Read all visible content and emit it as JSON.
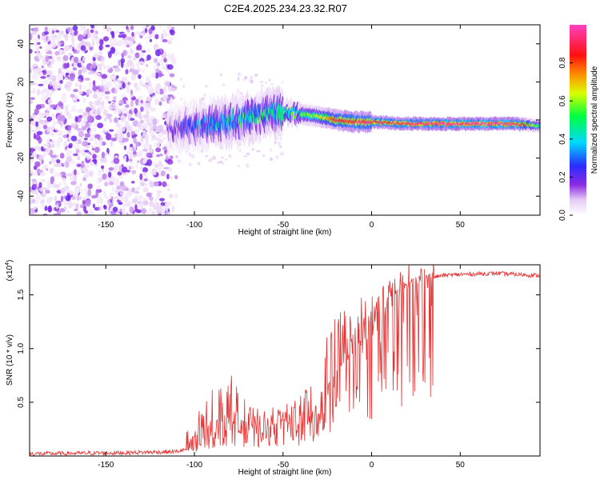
{
  "title": "C2E4.2025.234.23.32.R07",
  "colors": {
    "snr_line": "#e83030",
    "background": "#ffffff",
    "axis": "#000000"
  },
  "colorbar": {
    "label": "Normalized spectral amplitude",
    "ticks": [
      "0.0",
      "0.2",
      "0.4",
      "0.6",
      "0.8"
    ],
    "tick_values": [
      0.0,
      0.2,
      0.4,
      0.6,
      0.8
    ],
    "range": [
      0,
      1
    ]
  },
  "chart_data": [
    {
      "type": "heatmap",
      "title": "C2E4.2025.234.23.32.R07",
      "xlabel": "Height of straight line (km)",
      "ylabel": "Frequency (Hz)",
      "xlim": [
        -193,
        95
      ],
      "ylim": [
        -50,
        50
      ],
      "x_ticks": [
        -150,
        -100,
        -50,
        0,
        50
      ],
      "x_tick_labels": [
        "-150",
        "-100",
        "-50",
        "0",
        "50"
      ],
      "y_ticks": [
        -40,
        -20,
        0,
        20,
        40
      ],
      "y_tick_labels": [
        "-40",
        "-20",
        "0",
        "20",
        "40"
      ],
      "grid": false,
      "ridge": {
        "x": [
          -115,
          -100,
          -80,
          -60,
          -50,
          -40,
          -30,
          -20,
          -10,
          0,
          20,
          50,
          80,
          95
        ],
        "frequency": [
          -5,
          -3,
          -1,
          3,
          4,
          3,
          2,
          0,
          -1,
          -1,
          -2,
          -2,
          -2,
          -3
        ],
        "amplitude": [
          0.15,
          0.3,
          0.4,
          0.45,
          0.5,
          0.55,
          0.6,
          0.85,
          0.9,
          0.9,
          0.95,
          1.0,
          1.0,
          0.5
        ]
      }
    },
    {
      "type": "line",
      "xlabel": "Height of straight line (km)",
      "ylabel": "SNR (10 * v/v)",
      "y_multiplier": "(x10",
      "y_multiplier_exp": "4",
      "y_multiplier_close": ")",
      "xlim": [
        -193,
        95
      ],
      "ylim": [
        0,
        1.78
      ],
      "x_ticks": [
        -150,
        -100,
        -50,
        0,
        50
      ],
      "x_tick_labels": [
        "-150",
        "-100",
        "-50",
        "0",
        "50"
      ],
      "y_ticks": [
        0.5,
        1.0,
        1.5
      ],
      "y_tick_labels": [
        "0.5",
        "1.0",
        "1.5"
      ],
      "series": [
        {
          "name": "SNR",
          "envelope_x": [
            -193,
            -140,
            -110,
            -100,
            -90,
            -80,
            -70,
            -60,
            -50,
            -40,
            -35,
            -30,
            -25,
            -20,
            -15,
            -10,
            -5,
            0,
            5,
            10,
            15,
            20,
            30,
            40,
            50,
            70,
            95
          ],
          "envelope_y": [
            0.02,
            0.03,
            0.04,
            0.08,
            0.22,
            0.33,
            0.26,
            0.22,
            0.28,
            0.32,
            0.45,
            0.35,
            0.55,
            0.7,
            0.85,
            0.9,
            1.05,
            1.1,
            1.2,
            1.35,
            1.45,
            1.55,
            1.65,
            1.68,
            1.69,
            1.7,
            1.68
          ],
          "spike_max": [
            0.03,
            0.06,
            0.08,
            0.35,
            0.62,
            0.78,
            0.5,
            0.42,
            0.52,
            0.56,
            0.7,
            0.48,
            1.2,
            1.3,
            1.4,
            1.3,
            1.55,
            1.5,
            1.62,
            1.66,
            1.6,
            1.65,
            1.7,
            1.72,
            1.73,
            1.74,
            1.73
          ]
        }
      ]
    }
  ]
}
